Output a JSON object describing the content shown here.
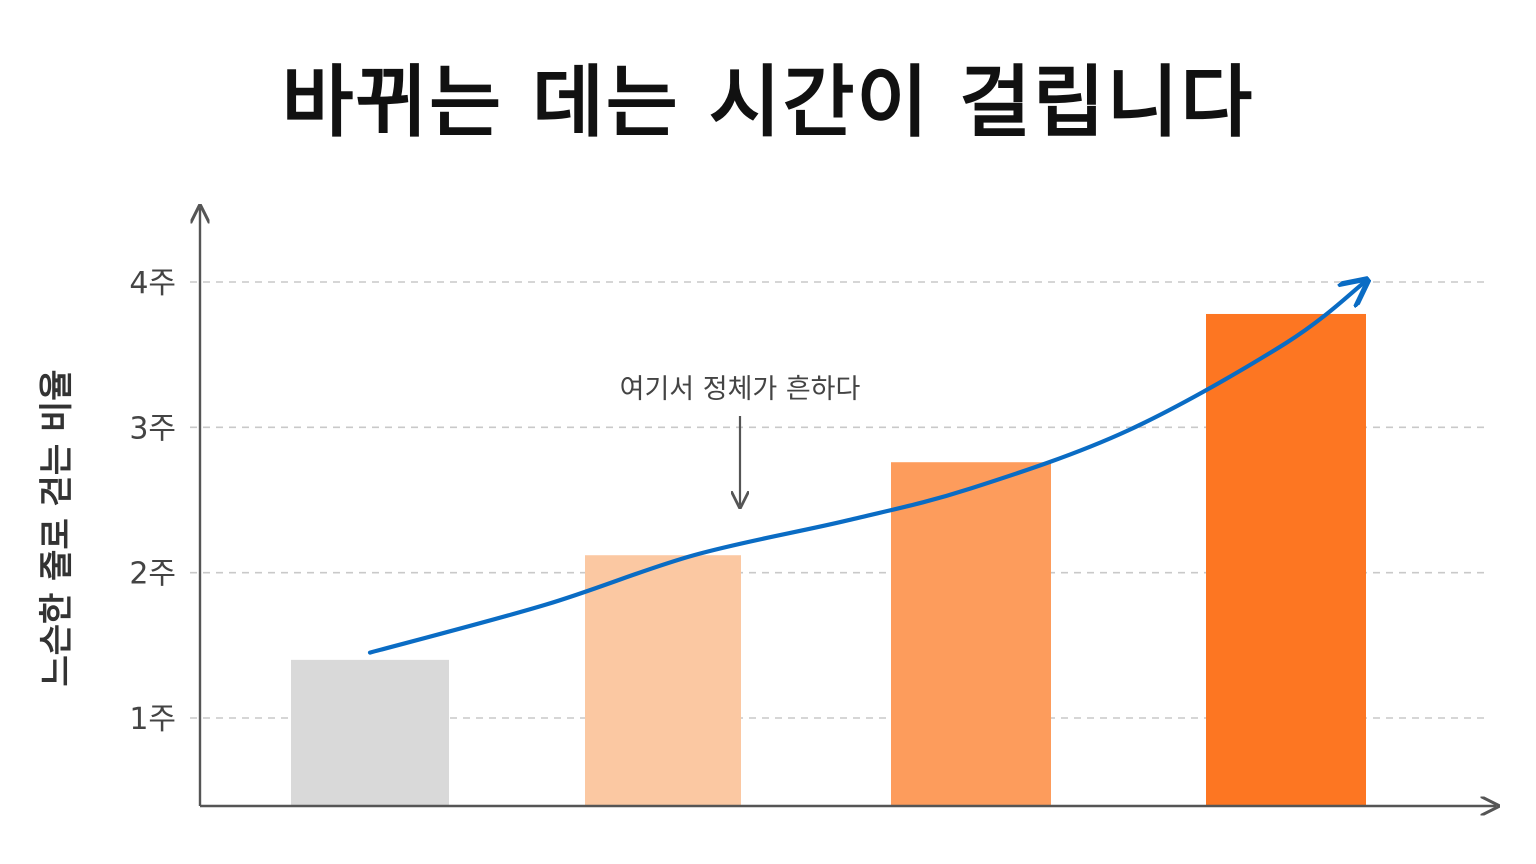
{
  "chart_data": {
    "type": "bar",
    "title": "바뀌는 데는 시간이 걸립니다",
    "ylabel": "느슨한 줄로 걷는 비율",
    "xlabel": "",
    "y_ticks": [
      {
        "value": 1,
        "label": "1주"
      },
      {
        "value": 2,
        "label": "2주"
      },
      {
        "value": 3,
        "label": "3주"
      },
      {
        "value": 4,
        "label": "4주"
      }
    ],
    "ylim": [
      0.4,
      4.9
    ],
    "grid": "horizontal-dashed",
    "categories": [
      "",
      "",
      "",
      ""
    ],
    "values": [
      1.4,
      2.12,
      2.76,
      3.78
    ],
    "bar_colors": [
      "#d9d9d9",
      "#fbc8a2",
      "#fd9c5c",
      "#fd7622"
    ],
    "trend_line": {
      "color": "#0a6cc4",
      "x": [
        0,
        0.6,
        1.1,
        1.6,
        2,
        2.5,
        3,
        3.25
      ],
      "values": [
        1.45,
        1.78,
        2.12,
        2.36,
        2.58,
        2.98,
        3.58,
        4.0
      ]
    },
    "annotation": {
      "text": "여기서 정체가 흔하다",
      "target_x": 1.25,
      "target_value": 2.45
    }
  }
}
